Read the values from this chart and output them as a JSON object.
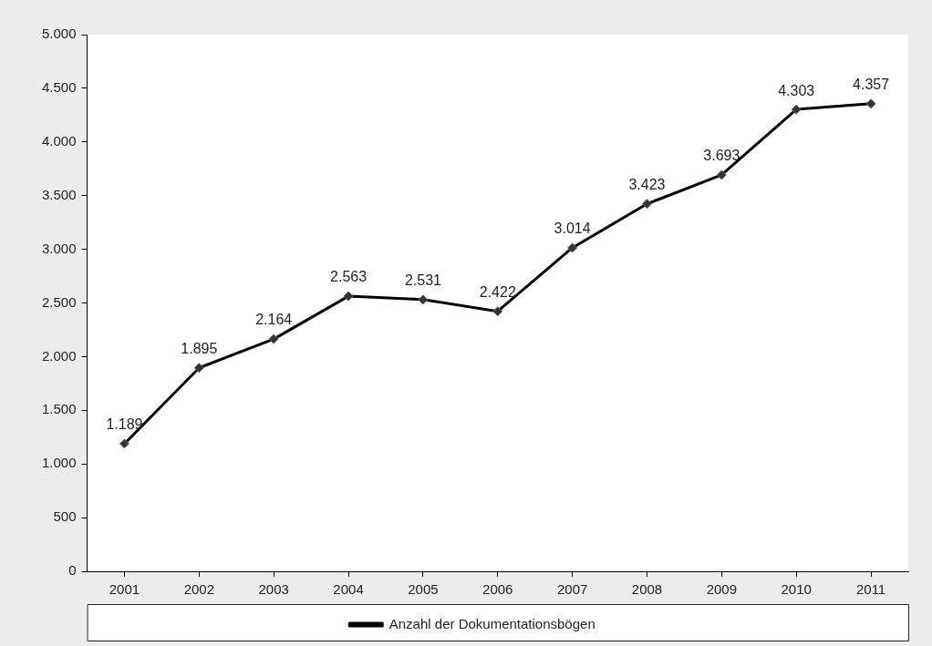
{
  "chart_data": {
    "type": "line",
    "categories": [
      "2001",
      "2002",
      "2003",
      "2004",
      "2005",
      "2006",
      "2007",
      "2008",
      "2009",
      "2010",
      "2011"
    ],
    "series": [
      {
        "name": "Anzahl der Dokumentationsbögen",
        "color": "#000000",
        "values": [
          1189,
          1895,
          2164,
          2563,
          2531,
          2422,
          3014,
          3423,
          3693,
          4303,
          4357
        ],
        "value_labels": [
          "1.189",
          "1.895",
          "2.164",
          "2.563",
          "2.531",
          "2.422",
          "3.014",
          "3.423",
          "3.693",
          "4.303",
          "4.357"
        ]
      }
    ],
    "ylim": [
      0,
      5000
    ],
    "yticks": [
      0,
      {
        "value": 500,
        "label": "500"
      },
      {
        "value": 1000,
        "label": "1.000"
      },
      {
        "value": 1500,
        "label": "1.500"
      },
      {
        "value": 2000,
        "label": "2.000"
      },
      {
        "value": 2500,
        "label": "2.500"
      },
      {
        "value": 3000,
        "label": "3.000"
      },
      {
        "value": 3500,
        "label": "3.500"
      },
      {
        "value": 4000,
        "label": "4.000"
      },
      {
        "value": 4500,
        "label": "4.500"
      },
      {
        "value": 5000,
        "label": "5.000"
      }
    ],
    "grid": false,
    "legend": "bottom",
    "marker": "diamond",
    "line_style": "solid"
  }
}
